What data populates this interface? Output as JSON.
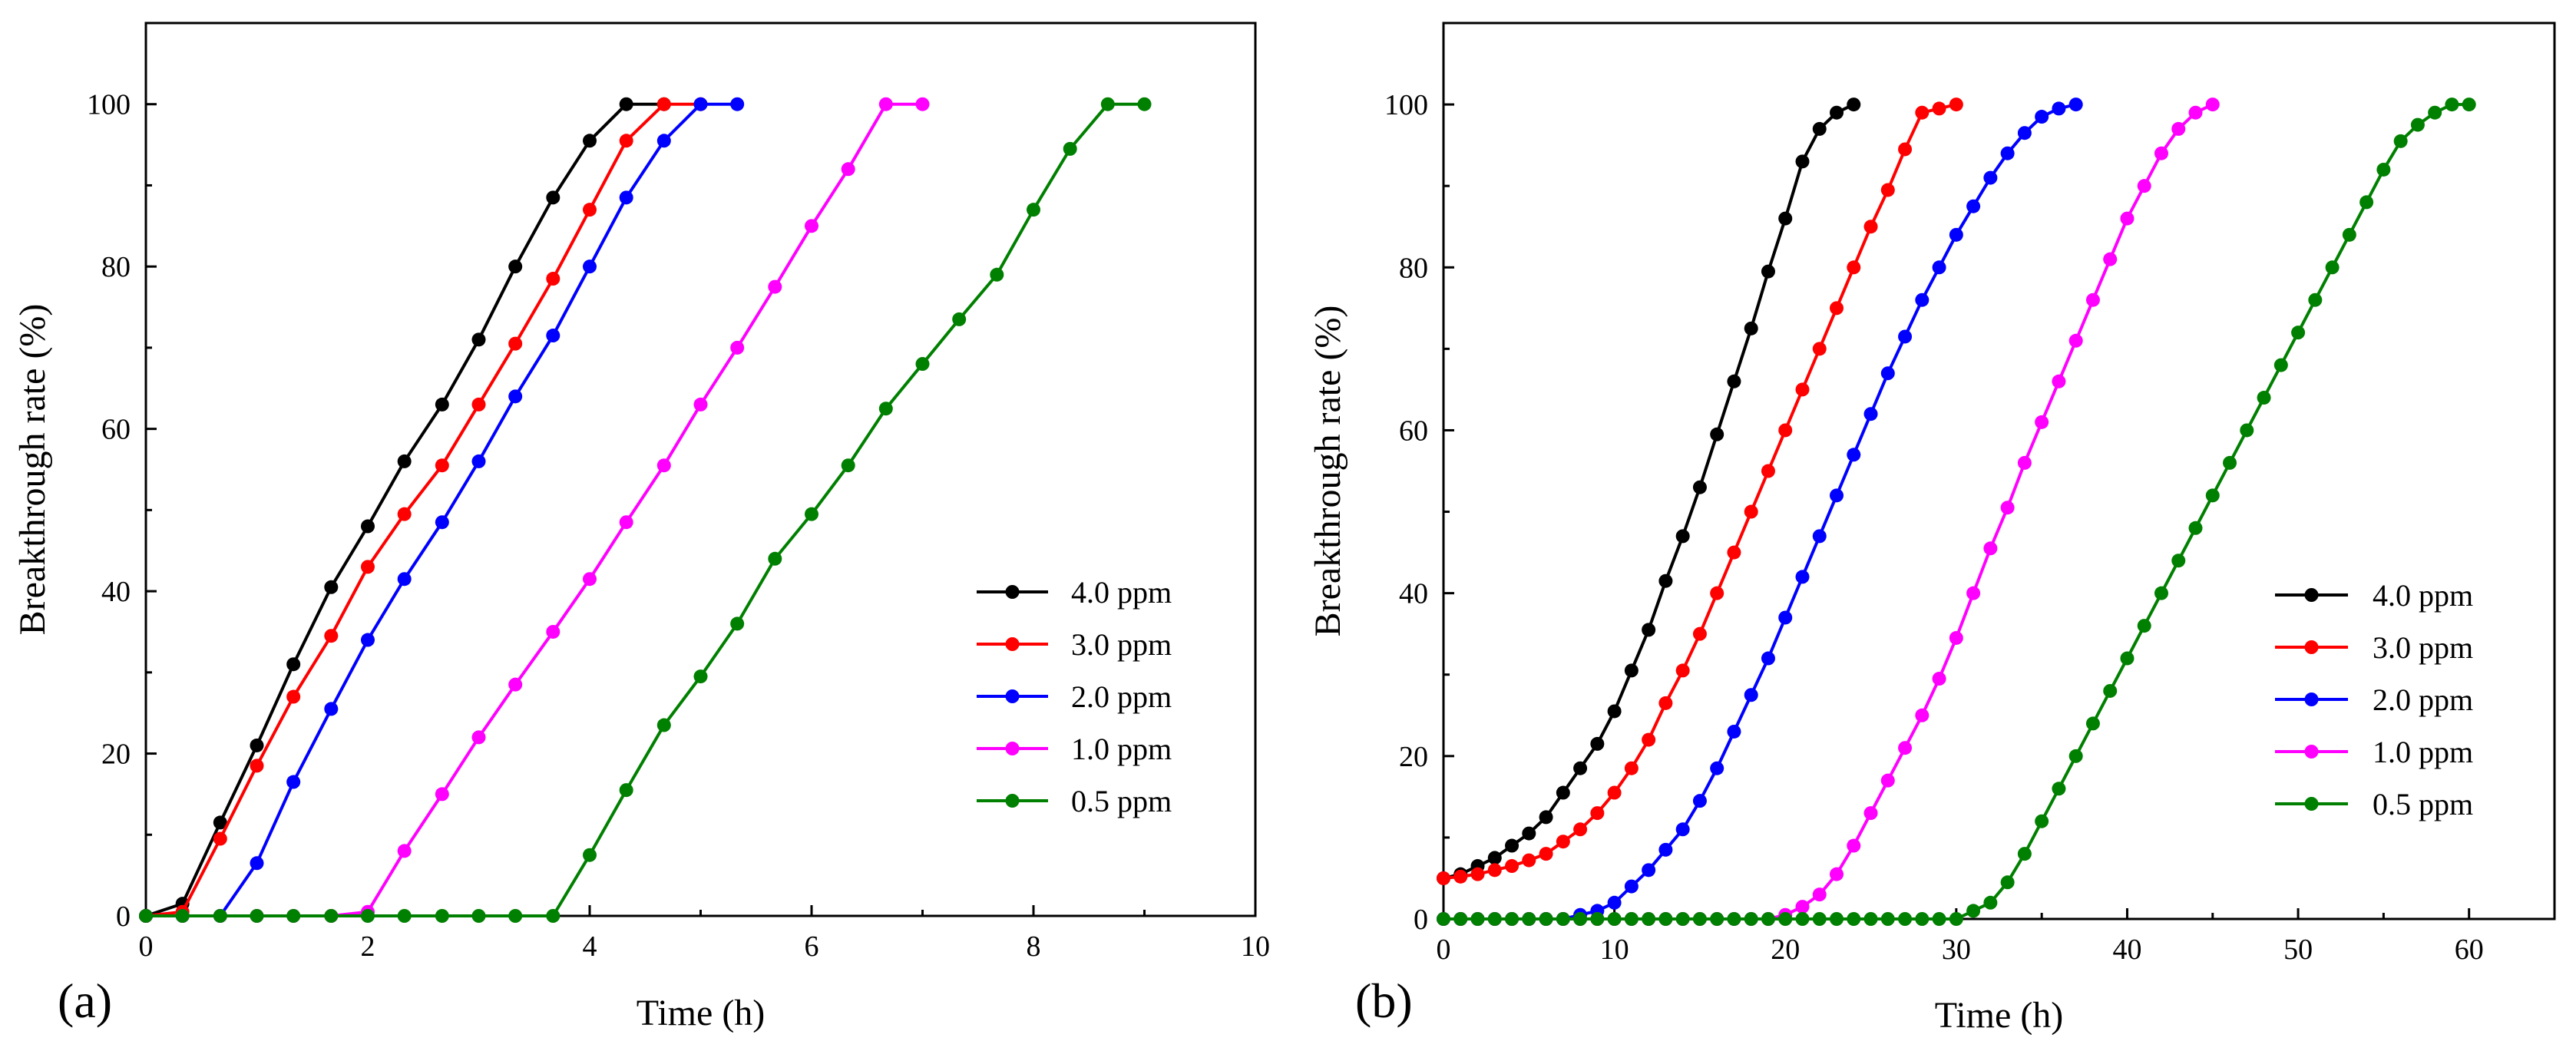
{
  "chart_data": [
    {
      "panel_label": "(a)",
      "type": "line",
      "xlabel": "Time (h)",
      "ylabel": "Breakthrough rate (%)",
      "xlim": [
        0,
        10
      ],
      "ylim": [
        0,
        110
      ],
      "xticks": [
        0,
        2,
        4,
        6,
        8,
        10
      ],
      "yticks": [
        0,
        20,
        40,
        60,
        80,
        100
      ],
      "legend_position": "bottom-right",
      "series": [
        {
          "name": "4.0 ppm",
          "color": "#000000",
          "x": [
            0,
            0.33,
            0.67,
            1.0,
            1.33,
            1.67,
            2.0,
            2.33,
            2.67,
            3.0,
            3.33,
            3.67,
            4.0,
            4.33,
            4.67
          ],
          "y": [
            0,
            1.5,
            11.5,
            21,
            31,
            40.5,
            48,
            56,
            63,
            71,
            80,
            88.5,
            95.5,
            100,
            100
          ]
        },
        {
          "name": "3.0 ppm",
          "color": "#ff0000",
          "x": [
            0,
            0.33,
            0.67,
            1.0,
            1.33,
            1.67,
            2.0,
            2.33,
            2.67,
            3.0,
            3.33,
            3.67,
            4.0,
            4.33,
            4.67,
            5.0
          ],
          "y": [
            0,
            0.5,
            9.5,
            18.5,
            27,
            34.5,
            43,
            49.5,
            55.5,
            63,
            70.5,
            78.5,
            87,
            95.5,
            100,
            100
          ]
        },
        {
          "name": "2.0 ppm",
          "color": "#0000ff",
          "x": [
            0,
            0.33,
            0.67,
            1.0,
            1.33,
            1.67,
            2.0,
            2.33,
            2.67,
            3.0,
            3.33,
            3.67,
            4.0,
            4.33,
            4.67,
            5.0,
            5.33
          ],
          "y": [
            0,
            0,
            0,
            6.5,
            16.5,
            25.5,
            34,
            41.5,
            48.5,
            56,
            64,
            71.5,
            80,
            88.5,
            95.5,
            100,
            100
          ]
        },
        {
          "name": "1.0 ppm",
          "color": "#ff00ff",
          "x": [
            0,
            0.33,
            0.67,
            1.0,
            1.33,
            1.67,
            2.0,
            2.33,
            2.67,
            3.0,
            3.33,
            3.67,
            4.0,
            4.33,
            4.67,
            5.0,
            5.33,
            5.67,
            6.0,
            6.33,
            6.67,
            7.0
          ],
          "y": [
            0,
            0,
            0,
            0,
            0,
            0,
            0.5,
            8,
            15,
            22,
            28.5,
            35,
            41.5,
            48.5,
            55.5,
            63,
            70,
            77.5,
            85,
            92,
            100,
            100
          ]
        },
        {
          "name": "0.5 ppm",
          "color": "#008000",
          "x": [
            0,
            0.33,
            0.67,
            1.0,
            1.33,
            1.67,
            2.0,
            2.33,
            2.67,
            3.0,
            3.33,
            3.67,
            4.0,
            4.33,
            4.67,
            5.0,
            5.33,
            5.67,
            6.0,
            6.33,
            6.67,
            7.0,
            7.33,
            7.67,
            8.0,
            8.33,
            8.67,
            9.0
          ],
          "y": [
            0,
            0,
            0,
            0,
            0,
            0,
            0,
            0,
            0,
            0,
            0,
            0,
            7.5,
            15.5,
            23.5,
            29.5,
            36,
            44,
            49.5,
            55.5,
            62.5,
            68,
            73.5,
            79,
            87,
            94.5,
            100,
            100
          ]
        }
      ]
    },
    {
      "panel_label": "(b)",
      "type": "line",
      "xlabel": "Time (h)",
      "ylabel": "Breakthrough rate (%)",
      "xlim": [
        0,
        65
      ],
      "ylim": [
        0,
        110
      ],
      "xticks": [
        0,
        10,
        20,
        30,
        40,
        50,
        60
      ],
      "yticks": [
        0,
        20,
        40,
        60,
        80,
        100
      ],
      "legend_position": "bottom-right",
      "series": [
        {
          "name": "4.0 ppm",
          "color": "#000000",
          "x": [
            0,
            1,
            2,
            3,
            4,
            5,
            6,
            7,
            8,
            9,
            10,
            11,
            12,
            13,
            14,
            15,
            16,
            17,
            18,
            19,
            20,
            21,
            22,
            23,
            24
          ],
          "y": [
            5,
            5.5,
            6.5,
            7.5,
            9,
            10.5,
            12.5,
            15.5,
            18.5,
            21.5,
            25.5,
            30.5,
            35.5,
            41.5,
            47,
            53,
            59.5,
            66,
            72.5,
            79.5,
            86,
            93,
            97,
            99,
            100
          ]
        },
        {
          "name": "3.0 ppm",
          "color": "#ff0000",
          "x": [
            0,
            1,
            2,
            3,
            4,
            5,
            6,
            7,
            8,
            9,
            10,
            11,
            12,
            13,
            14,
            15,
            16,
            17,
            18,
            19,
            20,
            21,
            22,
            23,
            24,
            25,
            26,
            27,
            28,
            29,
            30
          ],
          "y": [
            5,
            5.2,
            5.5,
            6,
            6.5,
            7.2,
            8,
            9.5,
            11,
            13,
            15.5,
            18.5,
            22,
            26.5,
            30.5,
            35,
            40,
            45,
            50,
            55,
            60,
            65,
            70,
            75,
            80,
            85,
            89.5,
            94.5,
            99,
            99.5,
            100
          ]
        },
        {
          "name": "2.0 ppm",
          "color": "#0000ff",
          "x": [
            0,
            1,
            2,
            3,
            4,
            5,
            6,
            7,
            8,
            9,
            10,
            11,
            12,
            13,
            14,
            15,
            16,
            17,
            18,
            19,
            20,
            21,
            22,
            23,
            24,
            25,
            26,
            27,
            28,
            29,
            30,
            31,
            32,
            33,
            34,
            35,
            36,
            37
          ],
          "y": [
            0,
            0,
            0,
            0,
            0,
            0,
            0,
            0,
            0.5,
            1,
            2,
            4,
            6,
            8.5,
            11,
            14.5,
            18.5,
            23,
            27.5,
            32,
            37,
            42,
            47,
            52,
            57,
            62,
            67,
            71.5,
            76,
            80,
            84,
            87.5,
            91,
            94,
            96.5,
            98.5,
            99.5,
            100
          ]
        },
        {
          "name": "1.0 ppm",
          "color": "#ff00ff",
          "x": [
            0,
            1,
            2,
            3,
            4,
            5,
            6,
            7,
            8,
            9,
            10,
            11,
            12,
            13,
            14,
            15,
            16,
            17,
            18,
            19,
            20,
            21,
            22,
            23,
            24,
            25,
            26,
            27,
            28,
            29,
            30,
            31,
            32,
            33,
            34,
            35,
            36,
            37,
            38,
            39,
            40,
            41,
            42,
            43,
            44,
            45
          ],
          "y": [
            0,
            0,
            0,
            0,
            0,
            0,
            0,
            0,
            0,
            0,
            0,
            0,
            0,
            0,
            0,
            0,
            0,
            0,
            0,
            0,
            0.5,
            1.5,
            3,
            5.5,
            9,
            13,
            17,
            21,
            25,
            29.5,
            34.5,
            40,
            45.5,
            50.5,
            56,
            61,
            66,
            71,
            76,
            81,
            86,
            90,
            94,
            97,
            99,
            100
          ]
        },
        {
          "name": "0.5 ppm",
          "color": "#008000",
          "x": [
            0,
            1,
            2,
            3,
            4,
            5,
            6,
            7,
            8,
            9,
            10,
            11,
            12,
            13,
            14,
            15,
            16,
            17,
            18,
            19,
            20,
            21,
            22,
            23,
            24,
            25,
            26,
            27,
            28,
            29,
            30,
            31,
            32,
            33,
            34,
            35,
            36,
            37,
            38,
            39,
            40,
            41,
            42,
            43,
            44,
            45,
            46,
            47,
            48,
            49,
            50,
            51,
            52,
            53,
            54,
            55,
            56,
            57,
            58,
            59,
            60
          ],
          "y": [
            0,
            0,
            0,
            0,
            0,
            0,
            0,
            0,
            0,
            0,
            0,
            0,
            0,
            0,
            0,
            0,
            0,
            0,
            0,
            0,
            0,
            0,
            0,
            0,
            0,
            0,
            0,
            0,
            0,
            0,
            0,
            1,
            2,
            4.5,
            8,
            12,
            16,
            20,
            24,
            28,
            32,
            36,
            40,
            44,
            48,
            52,
            56,
            60,
            64,
            68,
            72,
            76,
            80,
            84,
            88,
            92,
            95.5,
            97.5,
            99,
            100,
            100
          ]
        }
      ]
    }
  ]
}
